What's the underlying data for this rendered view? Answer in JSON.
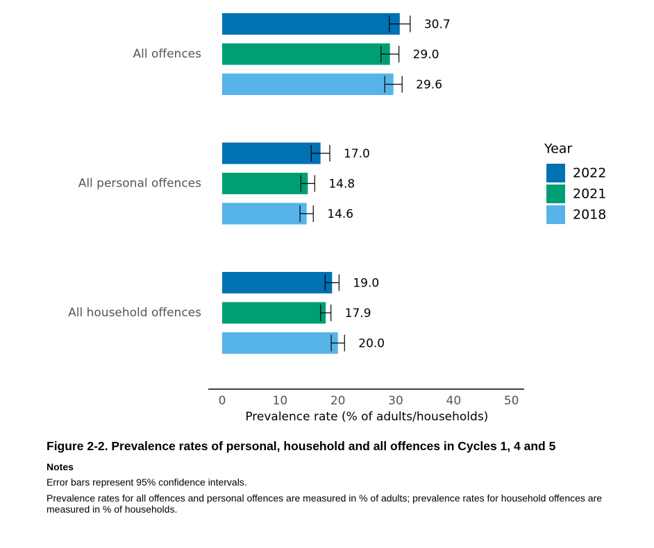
{
  "chart_data": {
    "type": "bar",
    "orientation": "horizontal",
    "categories": [
      "All offences",
      "All personal offences",
      "All household offences"
    ],
    "series": [
      {
        "name": "2022",
        "color": "#0071b2",
        "values": [
          30.7,
          17.0,
          19.0
        ],
        "value_labels": [
          "30.7",
          "17.0",
          "19.0"
        ],
        "errors": [
          1.8,
          1.6,
          1.2
        ]
      },
      {
        "name": "2021",
        "color": "#009e73",
        "values": [
          29.0,
          14.8,
          17.9
        ],
        "value_labels": [
          "29.0",
          "14.8",
          "17.9"
        ],
        "errors": [
          1.55,
          1.2,
          0.9
        ]
      },
      {
        "name": "2018",
        "color": "#56b4e9",
        "values": [
          29.6,
          14.6,
          20.0
        ],
        "value_labels": [
          "29.6",
          "14.6",
          "20.0"
        ],
        "errors": [
          1.5,
          1.15,
          1.15
        ]
      }
    ],
    "xlabel": "Prevalence rate (% of adults/households)",
    "xlim": [
      -2.4,
      52.2
    ],
    "xticks": [
      0,
      10,
      20,
      30,
      40,
      50
    ],
    "legend_title": "Year",
    "legend": "right",
    "grid": false
  },
  "caption": {
    "title": "Figure 2-2. Prevalence rates of personal, household and all offences in Cycles 1, 4 and 5",
    "notes_heading": "Notes",
    "notes": [
      "Error bars represent 95% confidence intervals.",
      "Prevalence rates for all offences and personal offences are measured in % of adults; prevalence rates for household offences are measured in % of households."
    ]
  }
}
